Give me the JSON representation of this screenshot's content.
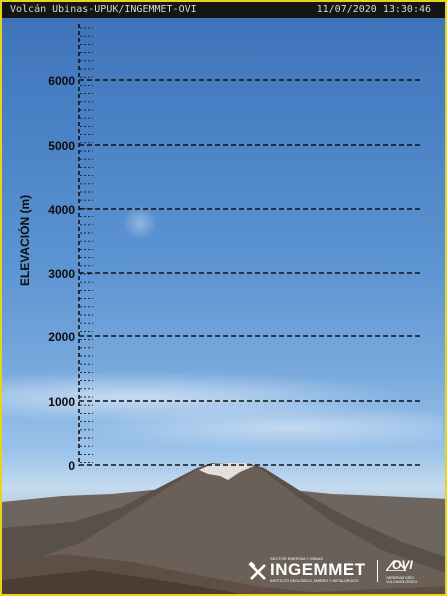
{
  "camera": {
    "title": "Volcán Ubinas-UPUK/INGEMMET-OVI",
    "timestamp": "11/07/2020 13:30:46"
  },
  "scale": {
    "axis_label": "ELEVACIÓN (m)",
    "ticks": [
      "6000",
      "5000",
      "4000",
      "3000",
      "2000",
      "1000",
      "0"
    ]
  },
  "logo": {
    "main": "INGEMMET",
    "sub": "SECTOR ENERGÍA Y MINAS",
    "sub2": "INSTITUTO GEOLÓGICO, MINERO Y METALÚRGICO",
    "ovi": "OVI",
    "ovi_sub": "OBSERVATORIO VULCANOLÓGICO"
  },
  "colors": {
    "frame": "#e6d51a",
    "titlebar": "#151515",
    "gridline": "#111111"
  }
}
